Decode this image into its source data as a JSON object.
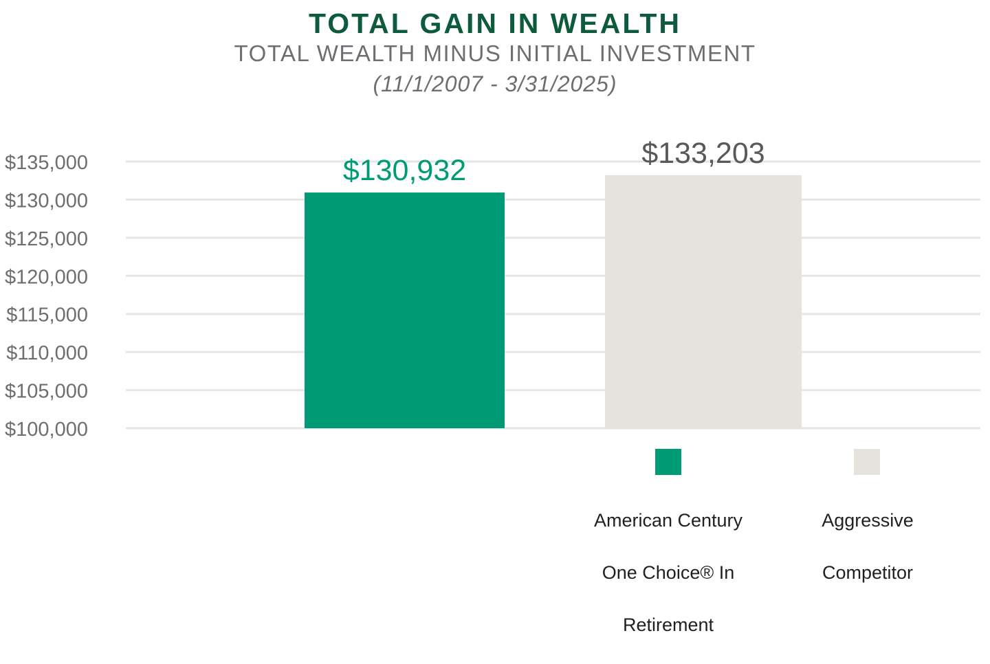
{
  "chart_data": {
    "type": "bar",
    "title": "TOTAL GAIN IN WEALTH",
    "subtitle": "TOTAL WEALTH MINUS INITIAL INVESTMENT",
    "date_range": "(11/1/2007 - 3/31/2025)",
    "categories": [
      "American Century One Choice® In Retirement",
      "Aggressive Competitor"
    ],
    "values": [
      130932,
      133203
    ],
    "value_labels": [
      "$130,932",
      "$133,203"
    ],
    "colors": [
      "#009b74",
      "#e6e3dc"
    ],
    "label_colors": [
      "#009b74",
      "#58595b"
    ],
    "ylim": [
      100000,
      135000
    ],
    "yticks": [
      100000,
      105000,
      110000,
      115000,
      120000,
      125000,
      130000,
      135000
    ],
    "ytick_labels": [
      "$100,000",
      "$105,000",
      "$110,000",
      "$115,000",
      "$120,000",
      "$125,000",
      "$130,000",
      "$135,000"
    ],
    "grid": true,
    "legend_position": "bottom-right",
    "legend": [
      {
        "line1": "American Century",
        "line2": "One Choice® In",
        "line3": "Retirement"
      },
      {
        "line1": "Aggressive",
        "line2": "Competitor",
        "line3": ""
      }
    ]
  }
}
